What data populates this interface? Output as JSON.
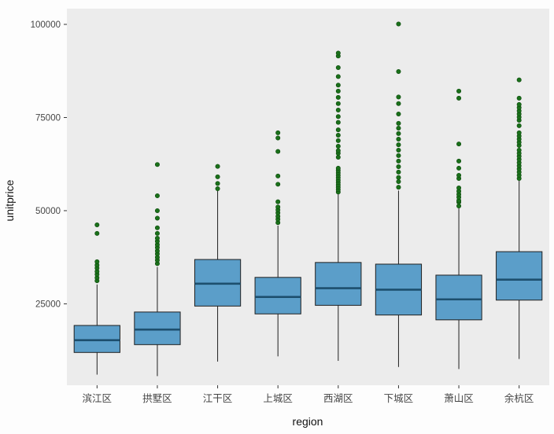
{
  "colors": {
    "page_background": "#fdfdfd",
    "panel_background": "#ececec",
    "box_fill": "#5b9ec9",
    "box_border": "#1f1f1f",
    "median_line": "#1d4f6e",
    "whisker": "#1f1f1f",
    "outlier_fill": "#1a701a",
    "axis_text": "#454545"
  },
  "chart_data": {
    "type": "boxplot",
    "title": "",
    "xlabel": "region",
    "ylabel": "unitprice",
    "grid": "off",
    "legend": "none",
    "categories": [
      "滨江区",
      "拱墅区",
      "江干区",
      "上城区",
      "西湖区",
      "下城区",
      "萧山区",
      "余杭区"
    ],
    "y_ticks": [
      25000,
      50000,
      75000,
      100000
    ],
    "y_tick_labels": [
      "25000",
      "50000",
      "75000",
      "100000"
    ],
    "y_domain": [
      3150,
      104220
    ],
    "series": [
      {
        "category": "滨江区",
        "whisker_low": 6000,
        "q1": 11950,
        "median": 15250,
        "q3": 19200,
        "whisker_high": 30200,
        "outliers": [
          31200,
          32000,
          32900,
          33700,
          34600,
          35400,
          36300,
          43900,
          46200
        ]
      },
      {
        "category": "拱墅区",
        "whisker_low": 5600,
        "q1": 14050,
        "median": 18100,
        "q3": 22800,
        "whisker_high": 34900,
        "outliers": [
          35800,
          36700,
          37500,
          38400,
          39200,
          40100,
          40900,
          41800,
          42600,
          43900,
          45400,
          48000,
          50000,
          54000,
          62400
        ]
      },
      {
        "category": "江干区",
        "whisker_low": 9500,
        "q1": 24400,
        "median": 30400,
        "q3": 36900,
        "whisker_high": 55300,
        "outliers": [
          55900,
          57300,
          59100,
          61900
        ]
      },
      {
        "category": "上城区",
        "whisker_low": 10900,
        "q1": 22300,
        "median": 26850,
        "q3": 32100,
        "whisker_high": 46000,
        "outliers": [
          46800,
          47700,
          48500,
          49400,
          50200,
          51000,
          52400,
          57100,
          59300,
          65900,
          69500,
          70900
        ]
      },
      {
        "category": "西湖区",
        "whisker_low": 9700,
        "q1": 24600,
        "median": 29200,
        "q3": 36100,
        "whisker_high": 54800,
        "outliers": [
          55000,
          55650,
          56300,
          56900,
          57550,
          58200,
          58850,
          59500,
          60150,
          60800,
          61400,
          64350,
          65400,
          66100,
          67300,
          68800,
          70250,
          71700,
          73700,
          75250,
          77000,
          78750,
          80400,
          82100,
          83700,
          86000,
          88400,
          91500,
          92300
        ]
      },
      {
        "category": "下城区",
        "whisker_low": 8050,
        "q1": 22000,
        "median": 28800,
        "q3": 35650,
        "whisker_high": 55400,
        "outliers": [
          56300,
          57800,
          58900,
          60350,
          61800,
          63300,
          64800,
          66250,
          67700,
          69200,
          70700,
          72150,
          73450,
          75950,
          78750,
          80500,
          87350,
          100100
        ]
      },
      {
        "category": "萧山区",
        "whisker_low": 7500,
        "q1": 20700,
        "median": 26200,
        "q3": 32700,
        "whisker_high": 50600,
        "outliers": [
          51250,
          52300,
          52700,
          53600,
          54400,
          55250,
          56100,
          58650,
          59500,
          61400,
          63300,
          67900,
          80200,
          82100
        ]
      },
      {
        "category": "余杭区",
        "whisker_low": 10200,
        "q1": 26000,
        "median": 31500,
        "q3": 39000,
        "whisker_high": 58000,
        "outliers": [
          58650,
          59500,
          60350,
          61200,
          62050,
          62900,
          63750,
          64600,
          65400,
          66250,
          67500,
          68350,
          69200,
          70050,
          70900,
          72800,
          74250,
          75100,
          75950,
          76800,
          77650,
          78500,
          80200,
          85100
        ]
      }
    ]
  }
}
